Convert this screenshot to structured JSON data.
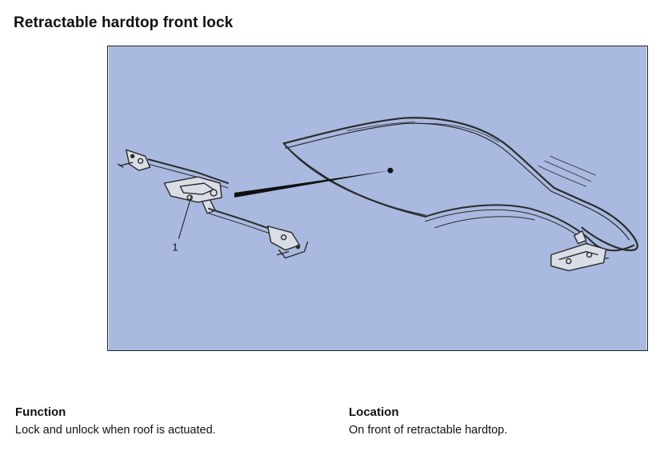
{
  "page": {
    "title": "Retractable hardtop front lock"
  },
  "figure": {
    "background_color": "#a9b9df",
    "callouts": [
      {
        "number": "1"
      }
    ]
  },
  "function": {
    "heading": "Function",
    "text": "Lock and unlock when roof is actuated."
  },
  "location": {
    "heading": "Location",
    "text": "On front of retractable hardtop."
  }
}
